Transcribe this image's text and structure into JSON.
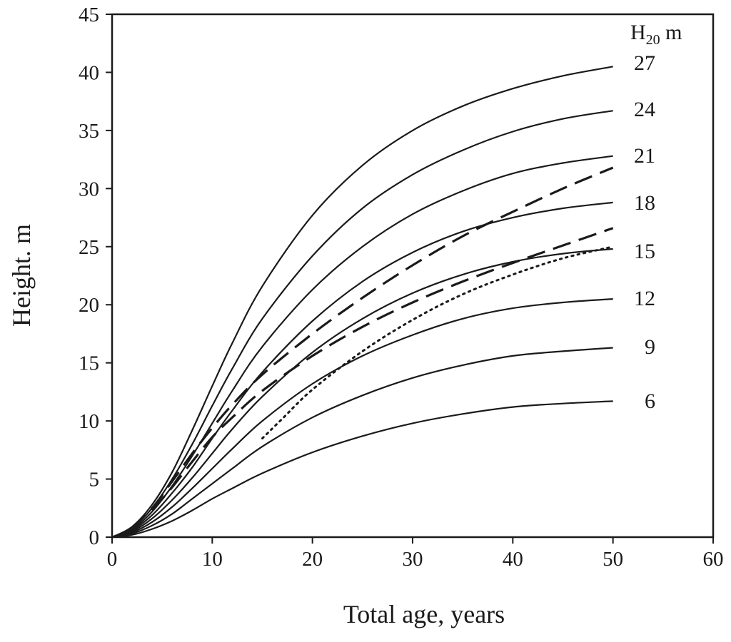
{
  "chart_data": {
    "type": "line",
    "xlabel": "Total age, years",
    "ylabel": "Height. m",
    "xlim": [
      0,
      60
    ],
    "ylim": [
      0,
      45
    ],
    "xticks": [
      0,
      10,
      20,
      30,
      40,
      50,
      60
    ],
    "yticks": [
      0,
      5,
      10,
      15,
      20,
      25,
      30,
      35,
      40,
      45
    ],
    "grid": false,
    "legend": {
      "title_main": "H",
      "title_sub": "20",
      "title_unit": " m",
      "placement": "top-right"
    },
    "series": [
      {
        "name": "27",
        "style": "solid",
        "x": [
          0,
          2,
          4,
          6,
          8,
          10,
          12,
          15,
          20,
          25,
          30,
          35,
          40,
          45,
          50
        ],
        "y": [
          0,
          0.9,
          2.8,
          5.6,
          9.2,
          13.0,
          16.7,
          21.6,
          27.7,
          32.0,
          35.0,
          37.1,
          38.6,
          39.7,
          40.5
        ]
      },
      {
        "name": "24",
        "style": "solid",
        "x": [
          0,
          2,
          4,
          6,
          8,
          10,
          12,
          15,
          20,
          25,
          30,
          35,
          40,
          45,
          50
        ],
        "y": [
          0,
          0.8,
          2.5,
          5.0,
          8.0,
          11.3,
          14.5,
          18.8,
          24.2,
          28.3,
          31.2,
          33.3,
          34.9,
          36.0,
          36.7
        ]
      },
      {
        "name": "21",
        "style": "solid",
        "x": [
          0,
          2,
          4,
          6,
          8,
          10,
          12,
          15,
          20,
          25,
          30,
          35,
          40,
          45,
          50
        ],
        "y": [
          0,
          0.7,
          2.2,
          4.4,
          7.0,
          9.8,
          12.6,
          16.4,
          21.3,
          25.0,
          27.8,
          29.8,
          31.3,
          32.2,
          32.8
        ]
      },
      {
        "name": "18",
        "style": "solid",
        "x": [
          0,
          2,
          4,
          6,
          8,
          10,
          12,
          15,
          20,
          25,
          30,
          35,
          40,
          45,
          50
        ],
        "y": [
          0,
          0.6,
          1.9,
          3.8,
          6.0,
          8.5,
          10.9,
          14.2,
          18.6,
          22.0,
          24.5,
          26.3,
          27.5,
          28.3,
          28.8
        ]
      },
      {
        "name": "15",
        "style": "solid",
        "x": [
          0,
          2,
          4,
          6,
          8,
          10,
          12,
          15,
          20,
          25,
          30,
          35,
          40,
          45,
          50
        ],
        "y": [
          0,
          0.5,
          1.6,
          3.2,
          5.1,
          7.2,
          9.3,
          12.1,
          15.9,
          18.8,
          21.0,
          22.6,
          23.7,
          24.4,
          24.8
        ]
      },
      {
        "name": "12",
        "style": "solid",
        "x": [
          0,
          2,
          4,
          6,
          8,
          10,
          12,
          15,
          20,
          25,
          30,
          35,
          40,
          45,
          50
        ],
        "y": [
          0,
          0.4,
          1.3,
          2.6,
          4.2,
          5.9,
          7.6,
          10.0,
          13.2,
          15.6,
          17.4,
          18.8,
          19.7,
          20.2,
          20.5
        ]
      },
      {
        "name": "9",
        "style": "solid",
        "x": [
          0,
          2,
          4,
          6,
          8,
          10,
          12,
          15,
          20,
          25,
          30,
          35,
          40,
          45,
          50
        ],
        "y": [
          0,
          0.3,
          1.0,
          2.0,
          3.3,
          4.6,
          5.9,
          7.8,
          10.3,
          12.2,
          13.7,
          14.8,
          15.6,
          16.0,
          16.3
        ]
      },
      {
        "name": "6",
        "style": "solid",
        "x": [
          0,
          2,
          4,
          6,
          8,
          10,
          12,
          15,
          20,
          25,
          30,
          35,
          40,
          45,
          50
        ],
        "y": [
          0,
          0.2,
          0.7,
          1.4,
          2.3,
          3.3,
          4.2,
          5.5,
          7.3,
          8.7,
          9.8,
          10.6,
          11.2,
          11.5,
          11.7
        ]
      },
      {
        "style": "dashed",
        "x": [
          2,
          4,
          6,
          8,
          10,
          12,
          15,
          20,
          25,
          30,
          35,
          40,
          45,
          50
        ],
        "y": [
          0.8,
          2.5,
          4.8,
          7.2,
          9.4,
          11.4,
          14.0,
          17.5,
          20.6,
          23.4,
          25.9,
          28.0,
          30.0,
          31.8
        ]
      },
      {
        "style": "dashed",
        "x": [
          4,
          6,
          8,
          10,
          12,
          15,
          20,
          25,
          30,
          35,
          40,
          45,
          50
        ],
        "y": [
          2.3,
          4.3,
          6.5,
          8.6,
          10.3,
          12.6,
          15.6,
          18.1,
          20.2,
          22.0,
          23.6,
          25.1,
          26.6
        ]
      },
      {
        "style": "dotted",
        "x": [
          15,
          17,
          20,
          25,
          30,
          35,
          40,
          45,
          50
        ],
        "y": [
          8.5,
          10.2,
          12.7,
          16.0,
          18.7,
          20.9,
          22.6,
          24.0,
          25.0
        ]
      }
    ]
  }
}
